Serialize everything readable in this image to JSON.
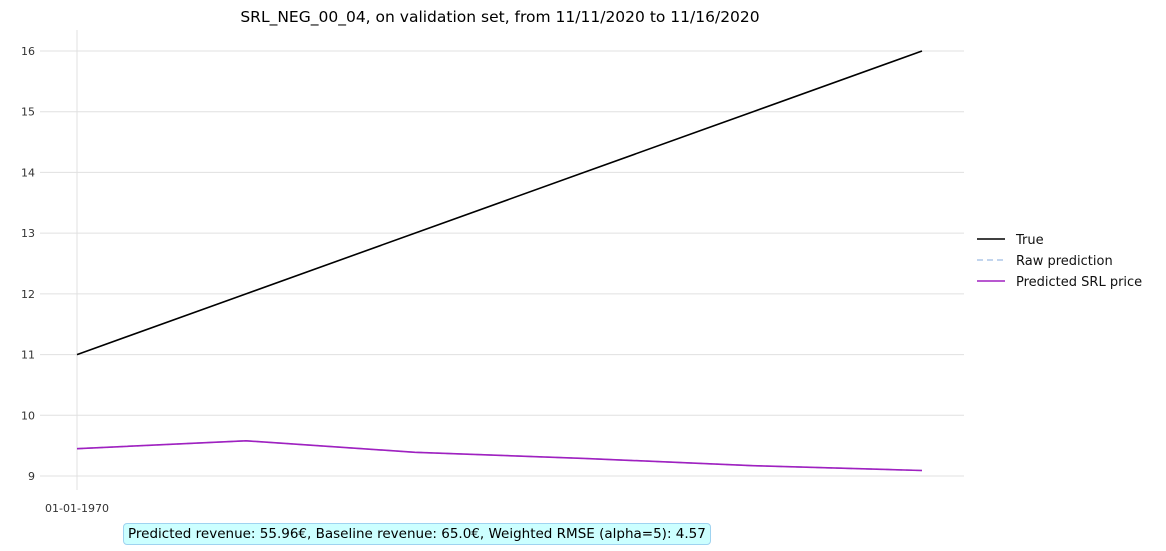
{
  "chart_data": {
    "type": "line",
    "title": "SRL_NEG_00_04, on validation set, from 11/11/2020 to 11/16/2020",
    "xlabel": "",
    "ylabel": "",
    "x_tick_labels": [
      "01-01-1970"
    ],
    "y_ticks": [
      9,
      10,
      11,
      12,
      13,
      14,
      15,
      16
    ],
    "ylim": [
      8.65,
      16.35
    ],
    "x": [
      0,
      1,
      2,
      3,
      4,
      5
    ],
    "xlim": [
      0,
      5
    ],
    "grid": true,
    "legend_position": "right",
    "series": [
      {
        "name": "True",
        "color": "#000000",
        "style": "solid",
        "values": [
          11,
          12,
          13,
          14,
          15,
          16
        ]
      },
      {
        "name": "Raw prediction",
        "color": "#aec7e8",
        "style": "dashed",
        "values": [
          9.45,
          9.58,
          9.39,
          9.29,
          9.17,
          9.09
        ]
      },
      {
        "name": "Predicted SRL price",
        "color": "#a020c0",
        "style": "solid",
        "values": [
          9.45,
          9.58,
          9.39,
          9.29,
          9.17,
          9.09
        ]
      }
    ],
    "annotation": "Predicted revenue: 55.96€, Baseline revenue: 65.0€, Weighted RMSE (alpha=5): 4.57"
  }
}
